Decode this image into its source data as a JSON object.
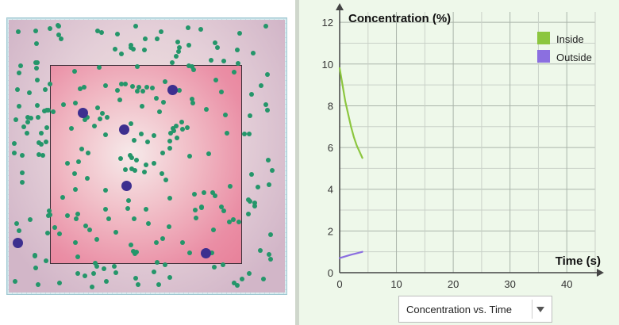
{
  "simulation": {
    "big_particles": 7,
    "small_particles": 260
  },
  "chart_data": {
    "type": "line",
    "title": "",
    "xlabel": "Time (s)",
    "ylabel": "Concentration (%)",
    "xlim": [
      0,
      45
    ],
    "ylim": [
      0,
      12.5
    ],
    "xticks": [
      "0",
      "10",
      "20",
      "30",
      "40"
    ],
    "yticks": [
      "0",
      "2",
      "4",
      "6",
      "8",
      "10",
      "12"
    ],
    "grid": true,
    "legend_position": "top-right",
    "series": [
      {
        "name": "Inside",
        "color": "#8cc63f",
        "x": [
          0,
          0.5,
          1,
          1.5,
          2,
          2.5,
          3,
          3.5,
          4
        ],
        "y": [
          9.8,
          9.0,
          8.2,
          7.6,
          7.0,
          6.5,
          6.1,
          5.8,
          5.5
        ]
      },
      {
        "name": "Outside",
        "color": "#8b6fe0",
        "x": [
          0,
          1,
          2,
          3,
          4
        ],
        "y": [
          0.7,
          0.78,
          0.86,
          0.93,
          1.0
        ]
      }
    ]
  },
  "dropdown": {
    "selected": "Concentration vs. Time"
  }
}
